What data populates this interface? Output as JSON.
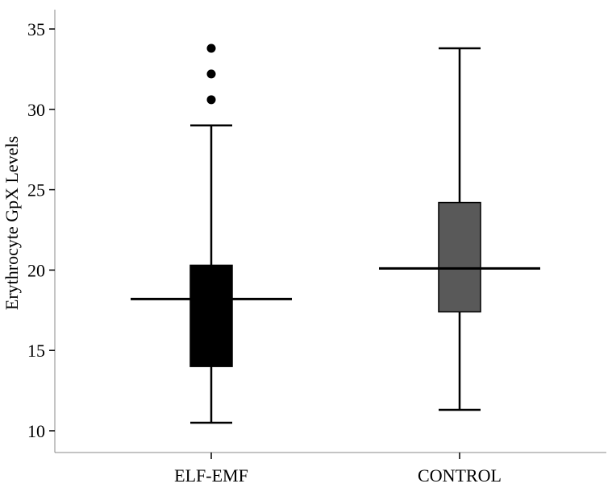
{
  "chart_data": {
    "type": "boxplot",
    "ylabel": "Erythrocyte GpX Levels",
    "xlabel": "",
    "ylim": [
      9.0,
      36.5
    ],
    "yticks": [
      10,
      15,
      20,
      25,
      30,
      35
    ],
    "ytick_labels": [
      "10",
      "15",
      "20",
      "25",
      "30",
      "35"
    ],
    "categories": [
      "ELF-EMF",
      "CONTROL"
    ],
    "boxes": [
      {
        "category": "ELF-EMF",
        "whisker_low": 10.5,
        "q1": 14.0,
        "median": 18.2,
        "q3": 20.3,
        "whisker_high": 29.0,
        "outliers": [
          30.6,
          32.2,
          33.8
        ],
        "fill": "#000000"
      },
      {
        "category": "CONTROL",
        "whisker_low": 11.3,
        "q1": 17.4,
        "median": 20.1,
        "q3": 24.2,
        "whisker_high": 33.8,
        "outliers": [],
        "fill": "#595959"
      }
    ],
    "grid": false,
    "legend": "none"
  }
}
